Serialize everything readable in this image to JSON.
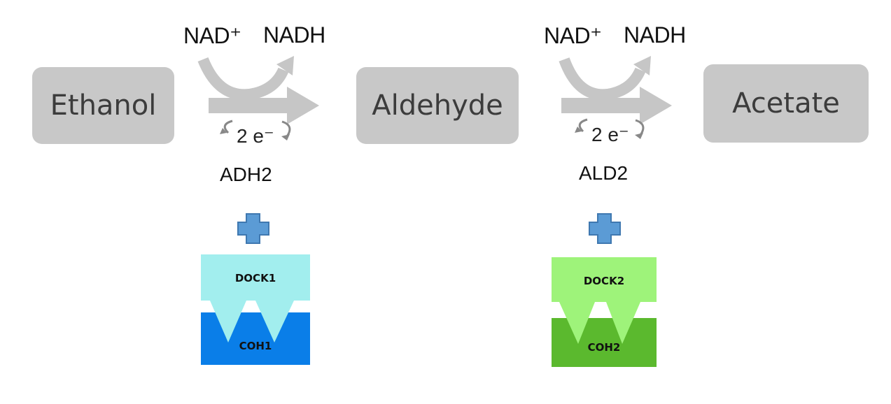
{
  "substrates": {
    "ethanol": "Ethanol",
    "aldehyde": "Aldehyde",
    "acetate": "Acetate"
  },
  "step1": {
    "nad": "NAD⁺",
    "nadh": "NADH",
    "electrons": "2 e⁻",
    "enzyme": "ADH2",
    "dock": "DOCK1",
    "coh": "COH1"
  },
  "step2": {
    "nad": "NAD⁺",
    "nadh": "NADH",
    "electrons": "2 e⁻",
    "enzyme": "ALD2",
    "dock": "DOCK2",
    "coh": "COH2"
  },
  "colors": {
    "box": "#c8c8c8",
    "arrow": "#c6c6c6",
    "plus": "#5b9bd5",
    "dock1": "#a2eeee",
    "coh1": "#0a7ee8",
    "dock2": "#9ef37a",
    "coh2": "#5bb92e"
  }
}
